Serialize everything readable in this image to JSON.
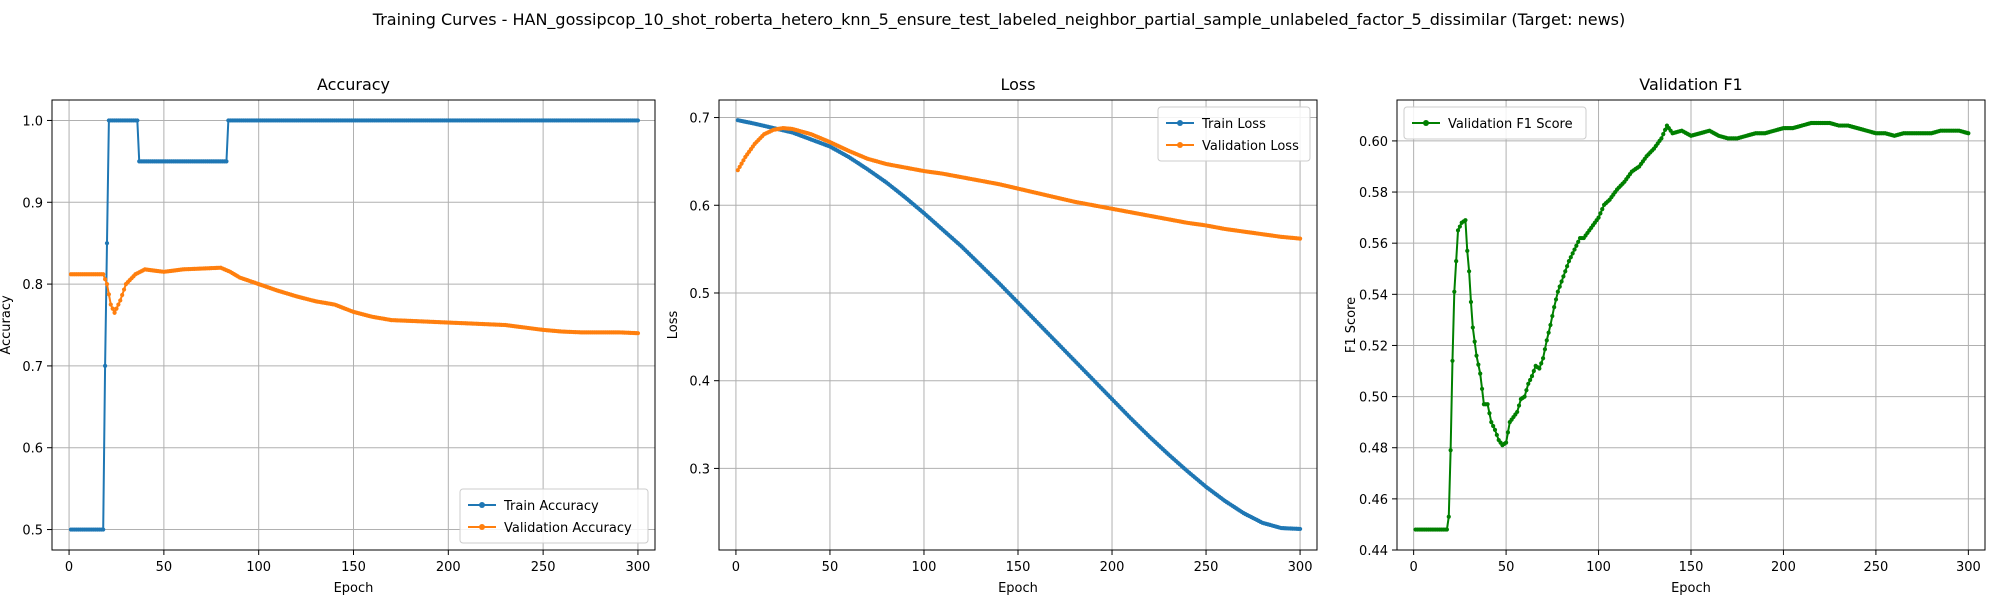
{
  "suptitle": "Training Curves - HAN_gossipcop_10_shot_roberta_hetero_knn_5_ensure_test_labeled_neighbor_partial_sample_unlabeled_factor_5_dissimilar (Target: news)",
  "colors": {
    "blue": "#1f77b4",
    "orange": "#ff7f0e",
    "green": "#008000"
  },
  "chart_data": [
    {
      "type": "line",
      "title": "Accuracy",
      "xlabel": "Epoch",
      "ylabel": "Accuracy",
      "xlim": [
        -9,
        309
      ],
      "ylim": [
        0.475,
        1.025
      ],
      "xticks": [
        0,
        50,
        100,
        150,
        200,
        250,
        300
      ],
      "yticks": [
        0.5,
        0.6,
        0.7,
        0.8,
        0.9,
        1.0
      ],
      "ytick_labels": [
        "0.5",
        "0.6",
        "0.7",
        "0.8",
        "0.9",
        "1.0"
      ],
      "grid": true,
      "legend": "lower-right",
      "series": [
        {
          "name": "Train Accuracy",
          "color": "#1f77b4",
          "points": [
            [
              1,
              0.5
            ],
            [
              18,
              0.5
            ],
            [
              19,
              0.7
            ],
            [
              20,
              0.85
            ],
            [
              21,
              1.0
            ],
            [
              36,
              1.0
            ],
            [
              37,
              0.95
            ],
            [
              83,
              0.95
            ],
            [
              84,
              1.0
            ],
            [
              300,
              1.0
            ]
          ]
        },
        {
          "name": "Validation Accuracy",
          "color": "#ff7f0e",
          "points": [
            [
              1,
              0.812
            ],
            [
              18,
              0.812
            ],
            [
              20,
              0.8
            ],
            [
              22,
              0.775
            ],
            [
              24,
              0.765
            ],
            [
              27,
              0.78
            ],
            [
              30,
              0.8
            ],
            [
              35,
              0.812
            ],
            [
              40,
              0.818
            ],
            [
              50,
              0.815
            ],
            [
              60,
              0.818
            ],
            [
              70,
              0.819
            ],
            [
              80,
              0.82
            ],
            [
              85,
              0.815
            ],
            [
              90,
              0.808
            ],
            [
              100,
              0.8
            ],
            [
              110,
              0.792
            ],
            [
              120,
              0.785
            ],
            [
              130,
              0.779
            ],
            [
              140,
              0.775
            ],
            [
              150,
              0.766
            ],
            [
              160,
              0.76
            ],
            [
              170,
              0.756
            ],
            [
              180,
              0.755
            ],
            [
              190,
              0.754
            ],
            [
              200,
              0.753
            ],
            [
              210,
              0.752
            ],
            [
              220,
              0.751
            ],
            [
              230,
              0.75
            ],
            [
              240,
              0.747
            ],
            [
              250,
              0.744
            ],
            [
              260,
              0.742
            ],
            [
              270,
              0.741
            ],
            [
              280,
              0.741
            ],
            [
              290,
              0.741
            ],
            [
              300,
              0.74
            ]
          ]
        }
      ]
    },
    {
      "type": "line",
      "title": "Loss",
      "xlabel": "Epoch",
      "ylabel": "Loss",
      "xlim": [
        -9,
        309
      ],
      "ylim": [
        0.207,
        0.72
      ],
      "xticks": [
        0,
        50,
        100,
        150,
        200,
        250,
        300
      ],
      "yticks": [
        0.3,
        0.4,
        0.5,
        0.6,
        0.7
      ],
      "ytick_labels": [
        "0.3",
        "0.4",
        "0.5",
        "0.6",
        "0.7"
      ],
      "grid": true,
      "legend": "upper-right",
      "series": [
        {
          "name": "Train Loss",
          "color": "#1f77b4",
          "points": [
            [
              1,
              0.697
            ],
            [
              10,
              0.693
            ],
            [
              20,
              0.688
            ],
            [
              30,
              0.683
            ],
            [
              40,
              0.675
            ],
            [
              50,
              0.667
            ],
            [
              60,
              0.655
            ],
            [
              70,
              0.641
            ],
            [
              80,
              0.626
            ],
            [
              90,
              0.609
            ],
            [
              100,
              0.591
            ],
            [
              110,
              0.572
            ],
            [
              120,
              0.553
            ],
            [
              130,
              0.532
            ],
            [
              140,
              0.511
            ],
            [
              150,
              0.489
            ],
            [
              160,
              0.467
            ],
            [
              170,
              0.445
            ],
            [
              180,
              0.423
            ],
            [
              190,
              0.401
            ],
            [
              200,
              0.379
            ],
            [
              210,
              0.357
            ],
            [
              220,
              0.336
            ],
            [
              230,
              0.316
            ],
            [
              240,
              0.297
            ],
            [
              250,
              0.279
            ],
            [
              260,
              0.263
            ],
            [
              270,
              0.249
            ],
            [
              280,
              0.238
            ],
            [
              290,
              0.232
            ],
            [
              300,
              0.231
            ]
          ]
        },
        {
          "name": "Validation Loss",
          "color": "#ff7f0e",
          "points": [
            [
              1,
              0.64
            ],
            [
              5,
              0.655
            ],
            [
              10,
              0.67
            ],
            [
              15,
              0.681
            ],
            [
              20,
              0.686
            ],
            [
              25,
              0.688
            ],
            [
              30,
              0.687
            ],
            [
              40,
              0.681
            ],
            [
              50,
              0.672
            ],
            [
              60,
              0.662
            ],
            [
              70,
              0.653
            ],
            [
              80,
              0.647
            ],
            [
              90,
              0.643
            ],
            [
              100,
              0.639
            ],
            [
              110,
              0.636
            ],
            [
              120,
              0.632
            ],
            [
              130,
              0.628
            ],
            [
              140,
              0.624
            ],
            [
              150,
              0.619
            ],
            [
              160,
              0.614
            ],
            [
              170,
              0.609
            ],
            [
              180,
              0.604
            ],
            [
              190,
              0.6
            ],
            [
              200,
              0.596
            ],
            [
              210,
              0.592
            ],
            [
              220,
              0.588
            ],
            [
              230,
              0.584
            ],
            [
              240,
              0.58
            ],
            [
              250,
              0.577
            ],
            [
              260,
              0.573
            ],
            [
              270,
              0.57
            ],
            [
              280,
              0.567
            ],
            [
              290,
              0.564
            ],
            [
              300,
              0.562
            ]
          ]
        }
      ]
    },
    {
      "type": "line",
      "title": "Validation F1",
      "xlabel": "Epoch",
      "ylabel": "F1 Score",
      "xlim": [
        -9,
        309
      ],
      "ylim": [
        0.44,
        0.616
      ],
      "xticks": [
        0,
        50,
        100,
        150,
        200,
        250,
        300
      ],
      "yticks": [
        0.44,
        0.46,
        0.48,
        0.5,
        0.52,
        0.54,
        0.56,
        0.58,
        0.6
      ],
      "ytick_labels": [
        "0.44",
        "0.46",
        "0.48",
        "0.50",
        "0.52",
        "0.54",
        "0.56",
        "0.58",
        "0.60"
      ],
      "grid": true,
      "legend": "upper-left",
      "series": [
        {
          "name": "Validation F1 Score",
          "color": "#008000",
          "points": [
            [
              1,
              0.448
            ],
            [
              18,
              0.448
            ],
            [
              19,
              0.453
            ],
            [
              20,
              0.479
            ],
            [
              21,
              0.514
            ],
            [
              22,
              0.541
            ],
            [
              23,
              0.553
            ],
            [
              24,
              0.565
            ],
            [
              26,
              0.568
            ],
            [
              28,
              0.569
            ],
            [
              29,
              0.557
            ],
            [
              30,
              0.549
            ],
            [
              31,
              0.537
            ],
            [
              32,
              0.527
            ],
            [
              34,
              0.516
            ],
            [
              36,
              0.509
            ],
            [
              38,
              0.497
            ],
            [
              40,
              0.497
            ],
            [
              42,
              0.49
            ],
            [
              44,
              0.487
            ],
            [
              46,
              0.483
            ],
            [
              48,
              0.481
            ],
            [
              50,
              0.482
            ],
            [
              52,
              0.49
            ],
            [
              54,
              0.492
            ],
            [
              56,
              0.494
            ],
            [
              58,
              0.499
            ],
            [
              60,
              0.5
            ],
            [
              62,
              0.505
            ],
            [
              64,
              0.508
            ],
            [
              66,
              0.512
            ],
            [
              68,
              0.511
            ],
            [
              70,
              0.515
            ],
            [
              72,
              0.522
            ],
            [
              74,
              0.528
            ],
            [
              76,
              0.535
            ],
            [
              78,
              0.541
            ],
            [
              80,
              0.545
            ],
            [
              82,
              0.549
            ],
            [
              84,
              0.553
            ],
            [
              86,
              0.556
            ],
            [
              88,
              0.559
            ],
            [
              90,
              0.562
            ],
            [
              92,
              0.562
            ],
            [
              94,
              0.564
            ],
            [
              96,
              0.566
            ],
            [
              98,
              0.568
            ],
            [
              100,
              0.57
            ],
            [
              103,
              0.575
            ],
            [
              106,
              0.577
            ],
            [
              110,
              0.581
            ],
            [
              114,
              0.584
            ],
            [
              118,
              0.588
            ],
            [
              122,
              0.59
            ],
            [
              126,
              0.594
            ],
            [
              130,
              0.597
            ],
            [
              134,
              0.601
            ],
            [
              137,
              0.606
            ],
            [
              140,
              0.603
            ],
            [
              145,
              0.604
            ],
            [
              150,
              0.602
            ],
            [
              155,
              0.603
            ],
            [
              160,
              0.604
            ],
            [
              165,
              0.602
            ],
            [
              170,
              0.601
            ],
            [
              175,
              0.601
            ],
            [
              180,
              0.602
            ],
            [
              185,
              0.603
            ],
            [
              190,
              0.603
            ],
            [
              195,
              0.604
            ],
            [
              200,
              0.605
            ],
            [
              205,
              0.605
            ],
            [
              210,
              0.606
            ],
            [
              215,
              0.607
            ],
            [
              220,
              0.607
            ],
            [
              225,
              0.607
            ],
            [
              230,
              0.606
            ],
            [
              235,
              0.606
            ],
            [
              240,
              0.605
            ],
            [
              245,
              0.604
            ],
            [
              250,
              0.603
            ],
            [
              255,
              0.603
            ],
            [
              260,
              0.602
            ],
            [
              265,
              0.603
            ],
            [
              270,
              0.603
            ],
            [
              275,
              0.603
            ],
            [
              280,
              0.603
            ],
            [
              285,
              0.604
            ],
            [
              290,
              0.604
            ],
            [
              295,
              0.604
            ],
            [
              300,
              0.603
            ]
          ]
        }
      ]
    }
  ]
}
